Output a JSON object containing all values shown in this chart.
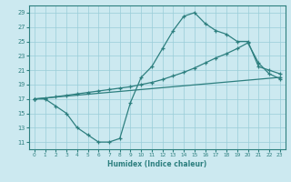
{
  "xlabel": "Humidex (Indice chaleur)",
  "background_color": "#cce9f0",
  "grid_color": "#99cdd9",
  "line_color": "#2d7f7f",
  "xlim": [
    -0.5,
    23.5
  ],
  "ylim": [
    10,
    30
  ],
  "xticks": [
    0,
    1,
    2,
    3,
    4,
    5,
    6,
    7,
    8,
    9,
    10,
    11,
    12,
    13,
    14,
    15,
    16,
    17,
    18,
    19,
    20,
    21,
    22,
    23
  ],
  "yticks": [
    11,
    13,
    15,
    17,
    19,
    21,
    23,
    25,
    27,
    29
  ],
  "line1_x": [
    0,
    1,
    2,
    3,
    4,
    5,
    6,
    7,
    8,
    9,
    10,
    11,
    12,
    13,
    14,
    15,
    16,
    17,
    18,
    19,
    20,
    21,
    22,
    23
  ],
  "line1_y": [
    17,
    17,
    16,
    15,
    13,
    12,
    11,
    11,
    11.5,
    16.5,
    20,
    21.5,
    24,
    26.5,
    28.5,
    29,
    27.5,
    26.5,
    26,
    25,
    25,
    21.5,
    21,
    20.5
  ],
  "line2_x": [
    0,
    1,
    2,
    3,
    4,
    5,
    6,
    7,
    8,
    9,
    10,
    11,
    12,
    13,
    14,
    15,
    16,
    17,
    18,
    19,
    20,
    21,
    22,
    23
  ],
  "line2_y": [
    17,
    17.1,
    17.3,
    17.5,
    17.7,
    17.9,
    18.1,
    18.3,
    18.5,
    18.7,
    19.0,
    19.3,
    19.7,
    20.2,
    20.7,
    21.3,
    22.0,
    22.7,
    23.3,
    24.0,
    24.8,
    22.0,
    20.5,
    19.8
  ],
  "line3_x": [
    0,
    23
  ],
  "line3_y": [
    17,
    20
  ]
}
